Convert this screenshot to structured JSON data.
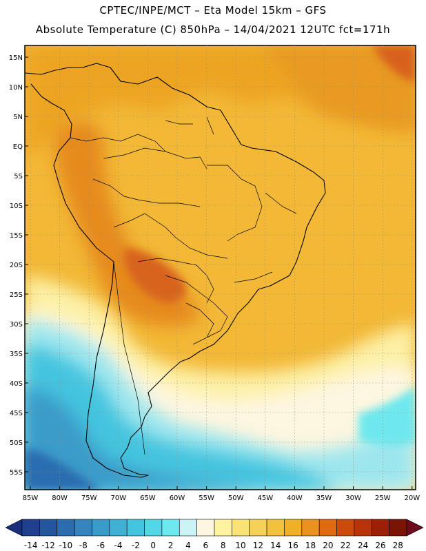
{
  "header": {
    "line1": "CPTEC/INPE/MCT –  Eta Model 15km – GFS",
    "line2": "Absolute Temperature (C) 850hPa – 14/04/2021 12UTC fct=171h"
  },
  "axes": {
    "lat_labels": [
      "15N",
      "10N",
      "5N",
      "EQ",
      "5S",
      "10S",
      "15S",
      "20S",
      "25S",
      "30S",
      "35S",
      "40S",
      "45S",
      "50S",
      "55S"
    ],
    "lon_labels": [
      "85W",
      "80W",
      "75W",
      "70W",
      "65W",
      "60W",
      "55W",
      "50W",
      "45W",
      "40W",
      "35W",
      "30W",
      "25W",
      "20W"
    ]
  },
  "colorbar": {
    "labels": [
      "-14",
      "-12",
      "-10",
      "-8",
      "-6",
      "-4",
      "-2",
      "0",
      "2",
      "4",
      "6",
      "8",
      "10",
      "12",
      "14",
      "16",
      "18",
      "20",
      "22",
      "24",
      "26",
      "28"
    ],
    "colors": [
      "#1f3f8f",
      "#2456a0",
      "#2c6db0",
      "#3584be",
      "#3a9bc9",
      "#40b1d5",
      "#45c4df",
      "#55d6e6",
      "#6ee8ee",
      "#ccf3f6",
      "#fdf6e0",
      "#fdf3a0",
      "#f9e276",
      "#f5d257",
      "#f2c23e",
      "#efaf26",
      "#ea9220",
      "#e06a12",
      "#cc4a0c",
      "#b8330a",
      "#9c2008",
      "#7a1506"
    ],
    "left_arrow_color": "#1a2f7a",
    "right_arrow_color": "#6e0a1e"
  }
}
